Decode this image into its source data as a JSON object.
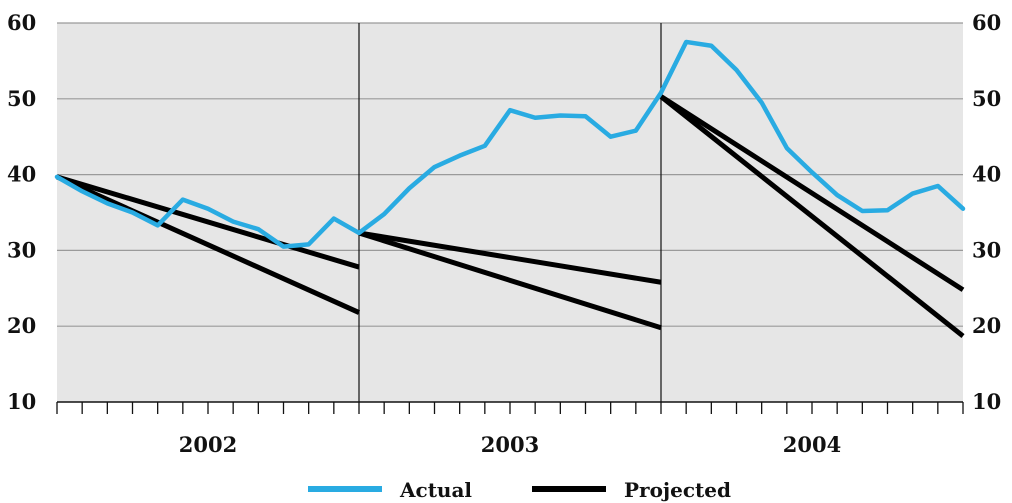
{
  "chart_data": {
    "type": "line",
    "title": "",
    "xlabel": "",
    "ylabel": "",
    "ylim": [
      10,
      60
    ],
    "yticks": [
      10,
      20,
      30,
      40,
      50,
      60
    ],
    "ytick_labels": [
      "10",
      "20",
      "30",
      "40",
      "50",
      "60"
    ],
    "grid": true,
    "year_labels": [
      "2002",
      "2003",
      "2004"
    ],
    "months_per_year": 12,
    "legend": [
      {
        "label": "Actual",
        "color": "#29abe2"
      },
      {
        "label": "Projected",
        "color": "#000000"
      }
    ],
    "colors": {
      "plot_background": "#e6e6e6",
      "actual": "#29abe2",
      "projected": "#000000"
    },
    "series": [
      {
        "name": "Actual",
        "x": [
          0,
          1,
          2,
          3,
          4,
          5,
          6,
          7,
          8,
          9,
          10,
          11,
          12,
          13,
          14,
          15,
          16,
          17,
          18,
          19,
          20,
          21,
          22,
          23,
          24,
          25,
          26,
          27,
          28,
          29,
          30,
          31,
          32,
          33,
          34,
          35,
          36
        ],
        "values": [
          39.7,
          37.8,
          36.2,
          35.0,
          33.3,
          36.7,
          35.5,
          33.8,
          32.8,
          30.5,
          30.8,
          34.2,
          32.3,
          34.8,
          38.2,
          41.0,
          42.5,
          43.8,
          48.5,
          47.5,
          47.8,
          47.7,
          45.0,
          45.8,
          50.8,
          57.5,
          57.0,
          53.8,
          49.5,
          43.5,
          40.3,
          37.3,
          35.2,
          35.3,
          37.5,
          38.5,
          35.5
        ]
      }
    ],
    "projections": [
      {
        "name": "Projected",
        "x": [
          0,
          12
        ],
        "values": [
          39.7,
          27.8
        ]
      },
      {
        "name": "Projected",
        "x": [
          0,
          12
        ],
        "values": [
          39.7,
          21.8
        ]
      },
      {
        "name": "Projected",
        "x": [
          12,
          24
        ],
        "values": [
          32.3,
          25.8
        ]
      },
      {
        "name": "Projected",
        "x": [
          12,
          24
        ],
        "values": [
          32.3,
          19.8
        ]
      },
      {
        "name": "Projected",
        "x": [
          24,
          36
        ],
        "values": [
          50.3,
          24.8
        ]
      },
      {
        "name": "Projected",
        "x": [
          24,
          36
        ],
        "values": [
          50.3,
          18.7
        ]
      }
    ]
  }
}
